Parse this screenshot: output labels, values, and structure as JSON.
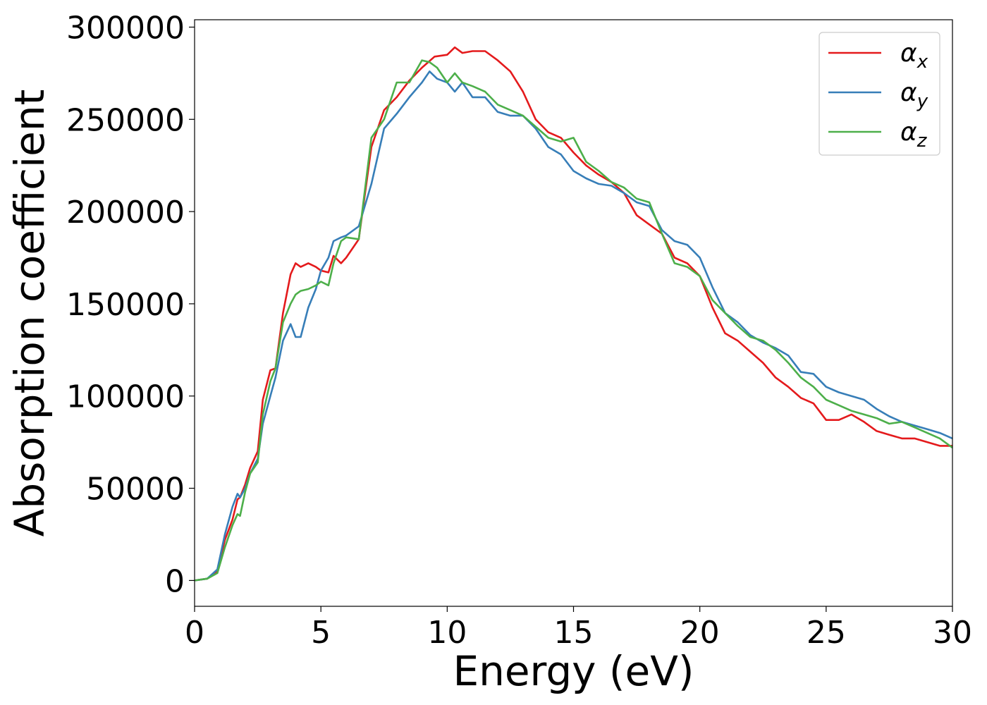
{
  "chart_data": {
    "type": "line",
    "title": "",
    "xlabel": "Energy (eV)",
    "ylabel": "Absorption coefficient",
    "xlim": [
      0,
      30
    ],
    "ylim": [
      -14000,
      304000
    ],
    "xticks": [
      0,
      5,
      10,
      15,
      20,
      25,
      30
    ],
    "yticks": [
      0,
      50000,
      100000,
      150000,
      200000,
      250000,
      300000
    ],
    "grid": false,
    "legend_position": "top-right",
    "series": [
      {
        "name": "α",
        "subscript": "x",
        "color": "#e41a1c",
        "x": [
          0.0,
          0.5,
          0.9,
          1.2,
          1.5,
          1.7,
          1.8,
          2.0,
          2.2,
          2.5,
          2.7,
          3.0,
          3.2,
          3.5,
          3.8,
          4.0,
          4.2,
          4.5,
          4.8,
          5.0,
          5.3,
          5.5,
          5.8,
          6.0,
          6.5,
          7.0,
          7.5,
          8.0,
          8.5,
          9.0,
          9.5,
          10.0,
          10.3,
          10.6,
          11.0,
          11.5,
          12.0,
          12.5,
          13.0,
          13.5,
          14.0,
          14.5,
          15.0,
          15.5,
          16.0,
          16.5,
          17.0,
          17.5,
          18.0,
          18.5,
          19.0,
          19.5,
          20.0,
          20.5,
          21.0,
          21.5,
          22.0,
          22.5,
          23.0,
          23.5,
          24.0,
          24.5,
          25.0,
          25.5,
          26.0,
          26.5,
          27.0,
          27.5,
          28.0,
          28.5,
          29.0,
          29.5,
          30.0
        ],
        "y": [
          0,
          1000,
          5000,
          22000,
          33000,
          44000,
          45000,
          52000,
          61000,
          70000,
          98000,
          114000,
          115000,
          145000,
          166000,
          172000,
          170000,
          172000,
          170000,
          168000,
          167000,
          176000,
          172000,
          175000,
          185000,
          235000,
          255000,
          262000,
          271000,
          278000,
          284000,
          285000,
          289000,
          286000,
          287000,
          287000,
          282000,
          276000,
          265000,
          250000,
          243000,
          240000,
          232000,
          225000,
          220000,
          216000,
          210000,
          198000,
          193000,
          188000,
          175000,
          172000,
          165000,
          148000,
          134000,
          130000,
          124000,
          118000,
          110000,
          105000,
          99000,
          96000,
          87000,
          87000,
          90000,
          86000,
          81000,
          79000,
          77000,
          77000,
          75000,
          73000,
          73000
        ]
      },
      {
        "name": "α",
        "subscript": "y",
        "color": "#377eb8",
        "x": [
          0.0,
          0.5,
          0.9,
          1.2,
          1.5,
          1.7,
          1.8,
          2.0,
          2.2,
          2.5,
          2.7,
          3.0,
          3.2,
          3.5,
          3.8,
          4.0,
          4.2,
          4.5,
          4.8,
          5.0,
          5.3,
          5.5,
          5.8,
          6.0,
          6.5,
          7.0,
          7.5,
          8.0,
          8.5,
          9.0,
          9.3,
          9.6,
          10.0,
          10.3,
          10.6,
          11.0,
          11.5,
          12.0,
          12.5,
          13.0,
          13.5,
          14.0,
          14.5,
          15.0,
          15.5,
          16.0,
          16.5,
          17.0,
          17.5,
          18.0,
          18.5,
          19.0,
          19.5,
          20.0,
          20.5,
          21.0,
          21.5,
          22.0,
          22.5,
          23.0,
          23.5,
          24.0,
          24.5,
          25.0,
          25.5,
          26.0,
          26.5,
          27.0,
          27.5,
          28.0,
          28.5,
          29.0,
          29.5,
          30.0
        ],
        "y": [
          0,
          1000,
          6000,
          25000,
          40000,
          47000,
          45000,
          50000,
          58000,
          66000,
          85000,
          100000,
          110000,
          130000,
          139000,
          132000,
          132000,
          148000,
          158000,
          168000,
          175000,
          184000,
          186000,
          187000,
          192000,
          215000,
          245000,
          253000,
          262000,
          270000,
          276000,
          272000,
          270000,
          265000,
          270000,
          262000,
          262000,
          254000,
          252000,
          252000,
          245000,
          235000,
          231000,
          222000,
          218000,
          215000,
          214000,
          210000,
          205000,
          203000,
          190000,
          184000,
          182000,
          175000,
          159000,
          145000,
          140000,
          133000,
          129000,
          126000,
          122000,
          113000,
          112000,
          105000,
          102000,
          100000,
          98000,
          93000,
          89000,
          86000,
          84000,
          82000,
          80000,
          77000
        ]
      },
      {
        "name": "α",
        "subscript": "z",
        "color": "#4daf4a",
        "x": [
          0.0,
          0.5,
          0.9,
          1.2,
          1.5,
          1.7,
          1.8,
          2.0,
          2.2,
          2.5,
          2.7,
          3.0,
          3.2,
          3.5,
          3.8,
          4.0,
          4.2,
          4.5,
          4.8,
          5.0,
          5.3,
          5.5,
          5.8,
          6.0,
          6.5,
          7.0,
          7.5,
          8.0,
          8.5,
          9.0,
          9.3,
          9.6,
          10.0,
          10.3,
          10.6,
          11.0,
          11.5,
          12.0,
          12.5,
          13.0,
          13.5,
          14.0,
          14.5,
          15.0,
          15.5,
          16.0,
          16.5,
          17.0,
          17.5,
          18.0,
          18.5,
          19.0,
          19.5,
          20.0,
          20.5,
          21.0,
          21.5,
          22.0,
          22.5,
          23.0,
          23.5,
          24.0,
          24.5,
          25.0,
          25.5,
          26.0,
          26.5,
          27.0,
          27.5,
          28.0,
          28.5,
          29.0,
          29.5,
          30.0
        ],
        "y": [
          0,
          1000,
          4000,
          18000,
          30000,
          36000,
          35000,
          48000,
          58000,
          64000,
          90000,
          108000,
          115000,
          140000,
          150000,
          155000,
          157000,
          158000,
          160000,
          162000,
          160000,
          172000,
          184000,
          186000,
          185000,
          240000,
          250000,
          270000,
          270000,
          282000,
          281000,
          278000,
          270000,
          275000,
          270000,
          268000,
          265000,
          258000,
          255000,
          252000,
          246000,
          240000,
          238000,
          240000,
          227000,
          222000,
          216000,
          213000,
          207000,
          205000,
          188000,
          172000,
          170000,
          165000,
          152000,
          145000,
          138000,
          132000,
          130000,
          125000,
          118000,
          110000,
          105000,
          98000,
          95000,
          92000,
          90000,
          88000,
          85000,
          86000,
          83000,
          80000,
          77000,
          72000
        ]
      }
    ]
  }
}
